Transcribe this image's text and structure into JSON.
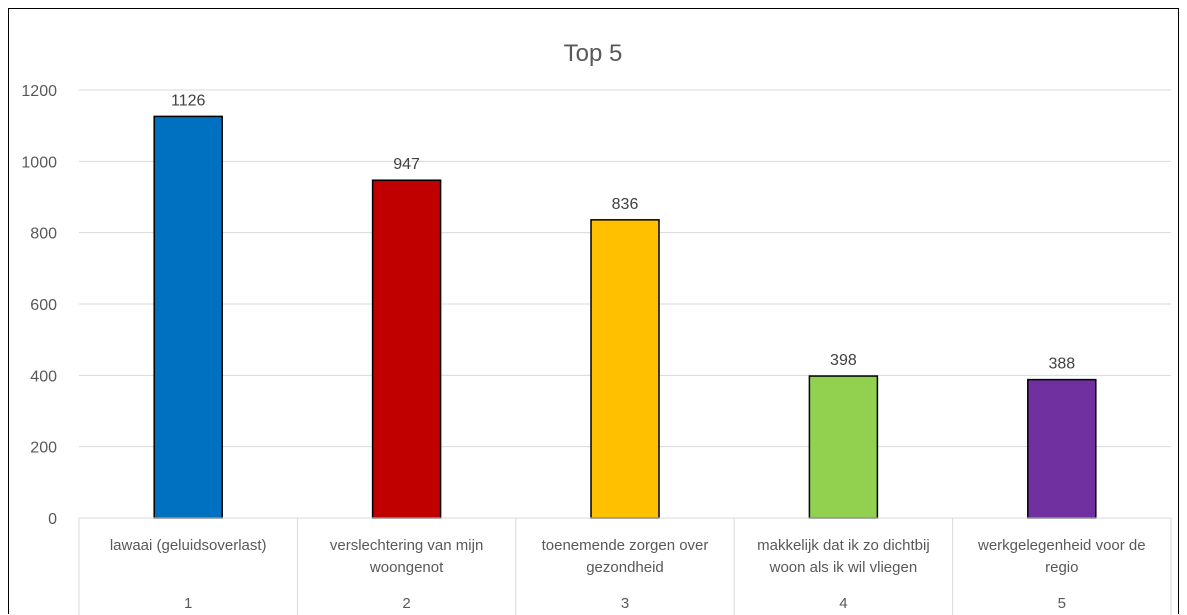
{
  "chart_data": {
    "type": "bar",
    "title": "Top 5",
    "xlabel": "",
    "ylabel": "",
    "ylim": [
      0,
      1200
    ],
    "yticks": [
      0,
      200,
      400,
      600,
      800,
      1000,
      1200
    ],
    "grid": true,
    "legend": "none",
    "categories": [
      {
        "lines": [
          "lawaai (geluidsoverlast)"
        ],
        "number": "1"
      },
      {
        "lines": [
          "verslechtering van mijn",
          "woongenot"
        ],
        "number": "2"
      },
      {
        "lines": [
          "toenemende zorgen over",
          "gezondheid"
        ],
        "number": "3"
      },
      {
        "lines": [
          "makkelijk dat ik zo dichtbij",
          "woon als ik wil vliegen"
        ],
        "number": "4"
      },
      {
        "lines": [
          "werkgelegenheid voor de",
          "regio"
        ],
        "number": "5"
      }
    ],
    "values": [
      1126,
      947,
      836,
      398,
      388
    ],
    "colors": [
      "#0070C0",
      "#C00000",
      "#FFC000",
      "#92D050",
      "#7030A0"
    ]
  }
}
